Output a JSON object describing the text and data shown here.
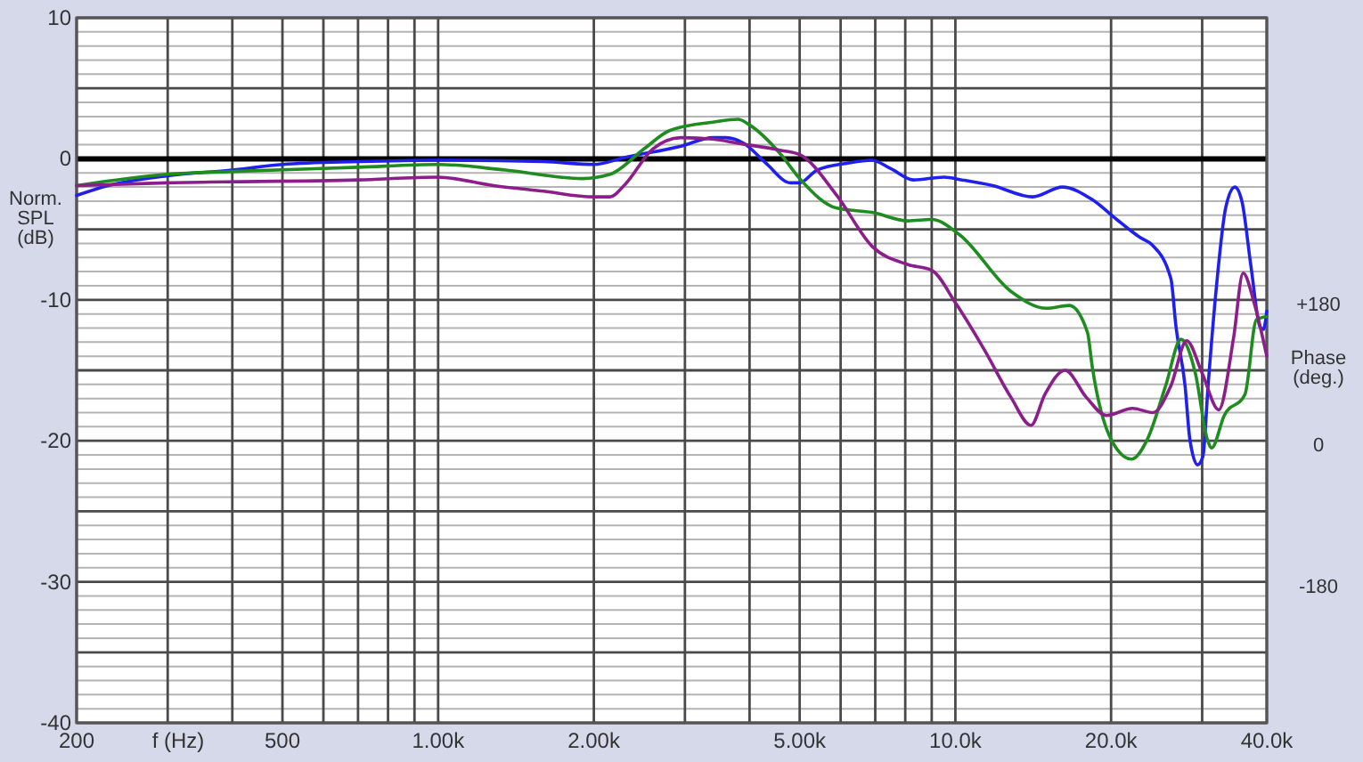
{
  "chart_data": {
    "type": "line",
    "xlabel": "f (Hz)",
    "ylabel": "Norm.\nSPL\n(dB)",
    "y2label": "Phase\n(deg.)",
    "log": "x",
    "grid": true,
    "xlim": [
      200,
      40000
    ],
    "xticks": [
      200,
      {
        "value": 300,
        "label": null
      },
      {
        "value": 400,
        "label": null
      },
      500,
      {
        "value": 600,
        "label": null
      },
      {
        "value": 700,
        "label": null
      },
      {
        "value": 800,
        "label": null
      },
      {
        "value": 900,
        "label": null
      },
      {
        "value": 1000,
        "label": "1.00k"
      },
      {
        "value": 2000,
        "label": "2.00k"
      },
      {
        "value": 3000,
        "label": null
      },
      {
        "value": 4000,
        "label": null
      },
      {
        "value": 5000,
        "label": "5.00k"
      },
      {
        "value": 6000,
        "label": null
      },
      {
        "value": 7000,
        "label": null
      },
      {
        "value": 8000,
        "label": null
      },
      {
        "value": 9000,
        "label": null
      },
      {
        "value": 10000,
        "label": "10.0k"
      },
      {
        "value": 20000,
        "label": "20.0k"
      },
      {
        "value": 30000,
        "label": null
      },
      {
        "value": 40000,
        "label": "40.0k"
      }
    ],
    "ylim": [
      -40,
      10
    ],
    "yticks": [
      -40,
      {
        "value": -39,
        "label": null
      },
      {
        "value": -38,
        "label": null
      },
      {
        "value": -37,
        "label": null
      },
      {
        "value": -36,
        "label": null
      },
      {
        "value": -35,
        "label": null
      },
      {
        "value": -34,
        "label": null
      },
      {
        "value": -33,
        "label": null
      },
      {
        "value": -32,
        "label": null
      },
      {
        "value": -31,
        "label": null
      },
      -30,
      {
        "value": -29,
        "label": null
      },
      {
        "value": -28,
        "label": null
      },
      {
        "value": -27,
        "label": null
      },
      {
        "value": -26,
        "label": null
      },
      {
        "value": -25,
        "label": null
      },
      {
        "value": -24,
        "label": null
      },
      {
        "value": -23,
        "label": null
      },
      {
        "value": -22,
        "label": null
      },
      {
        "value": -21,
        "label": null
      },
      -20,
      {
        "value": -19,
        "label": null
      },
      {
        "value": -18,
        "label": null
      },
      {
        "value": -17,
        "label": null
      },
      {
        "value": -16,
        "label": null
      },
      {
        "value": -15,
        "label": null
      },
      {
        "value": -14,
        "label": null
      },
      {
        "value": -13,
        "label": null
      },
      {
        "value": -12,
        "label": null
      },
      {
        "value": -11,
        "label": null
      },
      -10,
      {
        "value": -9,
        "label": null
      },
      {
        "value": -8,
        "label": null
      },
      {
        "value": -7,
        "label": null
      },
      {
        "value": -6,
        "label": null
      },
      {
        "value": -5,
        "label": null
      },
      {
        "value": -4,
        "label": null
      },
      {
        "value": -3,
        "label": null
      },
      {
        "value": -2,
        "label": null
      },
      {
        "value": -1,
        "label": null
      },
      0,
      {
        "value": 1,
        "label": null
      },
      {
        "value": 2,
        "label": null
      },
      {
        "value": 3,
        "label": null
      },
      {
        "value": 4,
        "label": null
      },
      {
        "value": 5,
        "label": null
      },
      {
        "value": 6,
        "label": null
      },
      {
        "value": 7,
        "label": null
      },
      {
        "value": 8,
        "label": null
      },
      {
        "value": 9,
        "label": null
      },
      10
    ],
    "y2lim": [
      -360,
      540
    ],
    "y2ticks": [
      -180,
      0,
      {
        "value": 180,
        "label": "+180"
      }
    ],
    "ref_lines": [
      {
        "axis": "y",
        "value": 0,
        "color": "#000000"
      }
    ],
    "series": [
      {
        "color": "#2020ee",
        "x": [
          200,
          230,
          300,
          400,
          500,
          700,
          1000,
          1600,
          2000,
          2300,
          2950,
          3400,
          3600,
          3900,
          4300,
          4800,
          5000,
          5400,
          6200,
          6900,
          7500,
          8300,
          9500,
          10300,
          11800,
          14100,
          16100,
          18400,
          20500,
          22800,
          24000,
          26100,
          26700,
          27800,
          28400,
          29400,
          30100,
          30800,
          32000,
          33300,
          34700,
          35800,
          37300,
          38800,
          39400,
          40000
        ],
        "values": [
          -2.6,
          -1.9,
          -1.2,
          -0.8,
          -0.4,
          -0.2,
          -0.1,
          -0.2,
          -0.4,
          0.1,
          0.9,
          1.5,
          1.5,
          1.1,
          -0.3,
          -1.7,
          -1.7,
          -0.8,
          -0.3,
          -0.1,
          -0.7,
          -1.5,
          -1.3,
          -1.5,
          -1.9,
          -2.7,
          -2.0,
          -2.9,
          -4.3,
          -5.6,
          -6.1,
          -8.5,
          -11.9,
          -16.1,
          -19.9,
          -21.7,
          -21.1,
          -16.1,
          -8.9,
          -3.5,
          -2.0,
          -3.0,
          -7.7,
          -11.9,
          -12.1,
          -10.8
        ]
      },
      {
        "color": "#1e8c1e",
        "x": [
          200,
          300,
          400,
          700,
          1000,
          1350,
          1900,
          2150,
          2500,
          2800,
          3400,
          3800,
          4000,
          4600,
          5000,
          5900,
          6900,
          8100,
          9000,
          10200,
          12800,
          15000,
          16600,
          18000,
          18400,
          20000,
          21900,
          23500,
          25500,
          27300,
          29100,
          30700,
          31300,
          33100,
          36300,
          38200,
          40000
        ],
        "values": [
          -1.9,
          -1.1,
          -0.9,
          -0.6,
          -0.4,
          -0.8,
          -1.4,
          -1.1,
          0.7,
          2.0,
          2.6,
          2.8,
          2.4,
          0.3,
          -1.4,
          -3.5,
          -3.8,
          -4.4,
          -4.3,
          -5.4,
          -9.4,
          -10.6,
          -10.4,
          -12.3,
          -14.8,
          -19.9,
          -21.3,
          -19.9,
          -16.1,
          -12.8,
          -15.2,
          -19.9,
          -20.5,
          -18.2,
          -16.7,
          -11.4,
          -11.2
        ]
      },
      {
        "color": "#8b1e8b",
        "x": [
          200,
          300,
          700,
          1000,
          1280,
          1600,
          2000,
          2150,
          2300,
          2600,
          2950,
          3400,
          3800,
          4600,
          5000,
          5900,
          6900,
          8100,
          9000,
          10000,
          11400,
          12800,
          14000,
          14900,
          16300,
          17900,
          19600,
          22000,
          24100,
          26100,
          28000,
          30000,
          32300,
          34500,
          36000,
          37800,
          40000
        ],
        "values": [
          -1.9,
          -1.7,
          -1.5,
          -1.3,
          -1.9,
          -2.3,
          -2.7,
          -2.7,
          -1.8,
          0.7,
          1.5,
          1.4,
          1.1,
          0.6,
          0.3,
          -2.6,
          -6.2,
          -7.5,
          -7.9,
          -10.2,
          -13.6,
          -16.9,
          -18.9,
          -16.7,
          -15.0,
          -16.9,
          -18.2,
          -17.7,
          -18.0,
          -16.1,
          -12.9,
          -15.2,
          -17.8,
          -12.7,
          -8.1,
          -10.2,
          -14.0
        ]
      }
    ]
  }
}
